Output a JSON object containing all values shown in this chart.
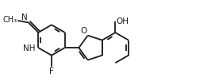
{
  "bg_color": "#ffffff",
  "line_color": "#1a1a1a",
  "line_width": 1.3,
  "font_size": 7.5,
  "fig_width": 2.71,
  "fig_height": 1.02,
  "dpi": 100,
  "xlim": [
    0.0,
    2.71
  ],
  "ylim": [
    0.0,
    1.02
  ]
}
